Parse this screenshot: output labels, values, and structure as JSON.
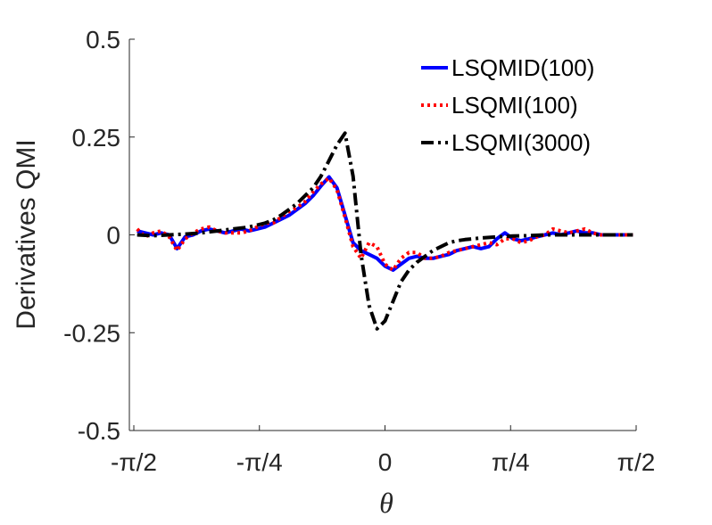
{
  "chart_data": {
    "type": "line",
    "xlabel": "θ",
    "ylabel": "Derivatives QMI",
    "xlim": [
      -1.5708,
      1.5708
    ],
    "ylim": [
      -0.5,
      0.5
    ],
    "x_ticks": [
      {
        "value": -1.5708,
        "label": "-π/2"
      },
      {
        "value": -0.7854,
        "label": "-π/4"
      },
      {
        "value": 0,
        "label": "0"
      },
      {
        "value": 0.7854,
        "label": "π/4"
      },
      {
        "value": 1.5708,
        "label": "π/2"
      }
    ],
    "y_ticks": [
      {
        "value": 0.5,
        "label": "0.5"
      },
      {
        "value": 0.25,
        "label": "0.25"
      },
      {
        "value": 0,
        "label": "0"
      },
      {
        "value": -0.25,
        "label": "-0.25"
      },
      {
        "value": -0.5,
        "label": "-0.5"
      }
    ],
    "grid": false,
    "legend_position": "top-right",
    "series": [
      {
        "name": "LSQMID(100)",
        "color": "#0000ff",
        "style": "solid",
        "x": [
          -1.55,
          -1.5,
          -1.45,
          -1.4,
          -1.35,
          -1.3,
          -1.25,
          -1.2,
          -1.15,
          -1.1,
          -1.05,
          -1.0,
          -0.95,
          -0.9,
          -0.85,
          -0.8,
          -0.75,
          -0.7,
          -0.65,
          -0.6,
          -0.55,
          -0.5,
          -0.45,
          -0.4,
          -0.35,
          -0.3,
          -0.25,
          -0.2,
          -0.15,
          -0.1,
          -0.05,
          0.0,
          0.05,
          0.1,
          0.15,
          0.2,
          0.25,
          0.3,
          0.35,
          0.4,
          0.45,
          0.5,
          0.55,
          0.6,
          0.65,
          0.7,
          0.75,
          0.8,
          0.85,
          0.9,
          0.95,
          1.0,
          1.05,
          1.1,
          1.15,
          1.2,
          1.25,
          1.3,
          1.35,
          1.4,
          1.45,
          1.5,
          1.55
        ],
        "y": [
          0.01,
          0.005,
          0.0,
          0.005,
          0.0,
          -0.035,
          -0.005,
          0.0,
          0.01,
          0.015,
          0.01,
          0.005,
          0.01,
          0.015,
          0.01,
          0.015,
          0.02,
          0.03,
          0.04,
          0.05,
          0.065,
          0.08,
          0.1,
          0.125,
          0.148,
          0.12,
          0.05,
          -0.02,
          -0.04,
          -0.05,
          -0.06,
          -0.08,
          -0.09,
          -0.075,
          -0.06,
          -0.055,
          -0.06,
          -0.06,
          -0.055,
          -0.05,
          -0.04,
          -0.035,
          -0.03,
          -0.035,
          -0.03,
          -0.01,
          0.005,
          -0.01,
          -0.015,
          -0.01,
          -0.005,
          0.0,
          0.005,
          0.0,
          0.005,
          0.01,
          0.005,
          0.005,
          0.0,
          0.0,
          0.0,
          0.0,
          0.0
        ]
      },
      {
        "name": "LSQMI(100)",
        "color": "#ff0000",
        "style": "dotted",
        "x": [
          -1.55,
          -1.5,
          -1.45,
          -1.4,
          -1.35,
          -1.3,
          -1.25,
          -1.2,
          -1.15,
          -1.1,
          -1.05,
          -1.0,
          -0.95,
          -0.9,
          -0.85,
          -0.8,
          -0.75,
          -0.7,
          -0.65,
          -0.6,
          -0.55,
          -0.5,
          -0.45,
          -0.4,
          -0.35,
          -0.3,
          -0.25,
          -0.2,
          -0.15,
          -0.1,
          -0.05,
          0.0,
          0.05,
          0.1,
          0.15,
          0.2,
          0.25,
          0.3,
          0.35,
          0.4,
          0.45,
          0.5,
          0.55,
          0.6,
          0.65,
          0.7,
          0.75,
          0.8,
          0.85,
          0.9,
          0.95,
          1.0,
          1.05,
          1.1,
          1.15,
          1.2,
          1.25,
          1.3,
          1.35,
          1.4,
          1.45,
          1.5,
          1.55
        ],
        "y": [
          0.015,
          -0.005,
          0.005,
          0.01,
          -0.005,
          -0.04,
          -0.01,
          0.005,
          0.015,
          0.02,
          0.01,
          0.005,
          0.005,
          0.005,
          0.01,
          0.02,
          0.03,
          0.03,
          0.045,
          0.06,
          0.07,
          0.085,
          0.11,
          0.13,
          0.145,
          0.115,
          0.045,
          -0.03,
          -0.06,
          -0.02,
          -0.03,
          -0.075,
          -0.09,
          -0.06,
          -0.045,
          -0.045,
          -0.06,
          -0.06,
          -0.055,
          -0.045,
          -0.04,
          -0.035,
          -0.03,
          -0.025,
          -0.02,
          -0.025,
          -0.01,
          -0.01,
          -0.02,
          -0.015,
          -0.005,
          0.0,
          0.015,
          0.01,
          0.005,
          0.01,
          0.015,
          0.005,
          0.0,
          0.0,
          0.0,
          0.0,
          0.0
        ]
      },
      {
        "name": "LSQMI(3000)",
        "color": "#000000",
        "style": "dashdot",
        "x": [
          -1.55,
          -1.45,
          -1.35,
          -1.25,
          -1.15,
          -1.05,
          -0.95,
          -0.85,
          -0.75,
          -0.7,
          -0.65,
          -0.6,
          -0.55,
          -0.5,
          -0.45,
          -0.4,
          -0.35,
          -0.3,
          -0.25,
          -0.2,
          -0.15,
          -0.1,
          -0.05,
          0.0,
          0.05,
          0.1,
          0.15,
          0.2,
          0.25,
          0.3,
          0.35,
          0.4,
          0.45,
          0.5,
          0.55,
          0.6,
          0.7,
          0.8,
          0.9,
          1.0,
          1.1,
          1.2,
          1.3,
          1.4,
          1.5,
          1.55
        ],
        "y": [
          0.0,
          -0.002,
          0.0,
          0.002,
          0.005,
          0.01,
          0.015,
          0.02,
          0.03,
          0.038,
          0.05,
          0.065,
          0.08,
          0.1,
          0.12,
          0.15,
          0.19,
          0.23,
          0.26,
          0.15,
          -0.05,
          -0.18,
          -0.24,
          -0.22,
          -0.17,
          -0.12,
          -0.09,
          -0.07,
          -0.055,
          -0.04,
          -0.03,
          -0.02,
          -0.015,
          -0.012,
          -0.01,
          -0.008,
          -0.005,
          -0.003,
          -0.002,
          0.0,
          0.0,
          0.0,
          0.0,
          0.0,
          0.0,
          0.0
        ]
      }
    ]
  }
}
